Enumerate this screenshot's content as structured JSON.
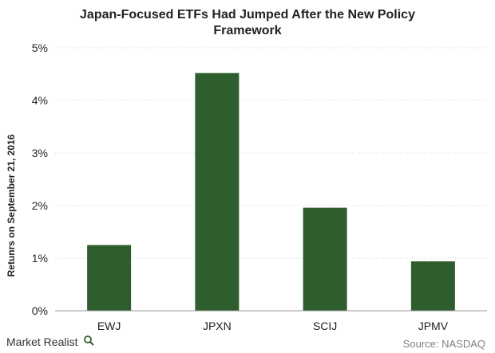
{
  "chart_data": {
    "type": "bar",
    "title": "Japan-Focused ETFs Had Jumped After the New Policy Framework",
    "title_lines": [
      "Japan-Focused ETFs Had Jumped After the New Policy",
      "Framework"
    ],
    "xlabel": "",
    "ylabel": "Retunrs on September 21, 2016",
    "categories": [
      "EWJ",
      "JPXN",
      "SCIJ",
      "JPMV"
    ],
    "values": [
      1.25,
      4.52,
      1.96,
      0.94
    ],
    "ylim": [
      0,
      5
    ],
    "yticks": [
      0,
      1,
      2,
      3,
      4,
      5
    ],
    "ytick_labels": [
      "0%",
      "1%",
      "2%",
      "3%",
      "4%",
      "5%"
    ],
    "grid": true,
    "bar_color": "#2e5e2e"
  },
  "footer": {
    "brand": "Market Realist",
    "source": "Source: NASDAQ",
    "brand_icon": "magnifier-icon"
  },
  "colors": {
    "bar": "#2e5e2e",
    "grid": "#d9d9d9",
    "axis": "#999999",
    "text": "#222222",
    "source_text": "#808080"
  }
}
